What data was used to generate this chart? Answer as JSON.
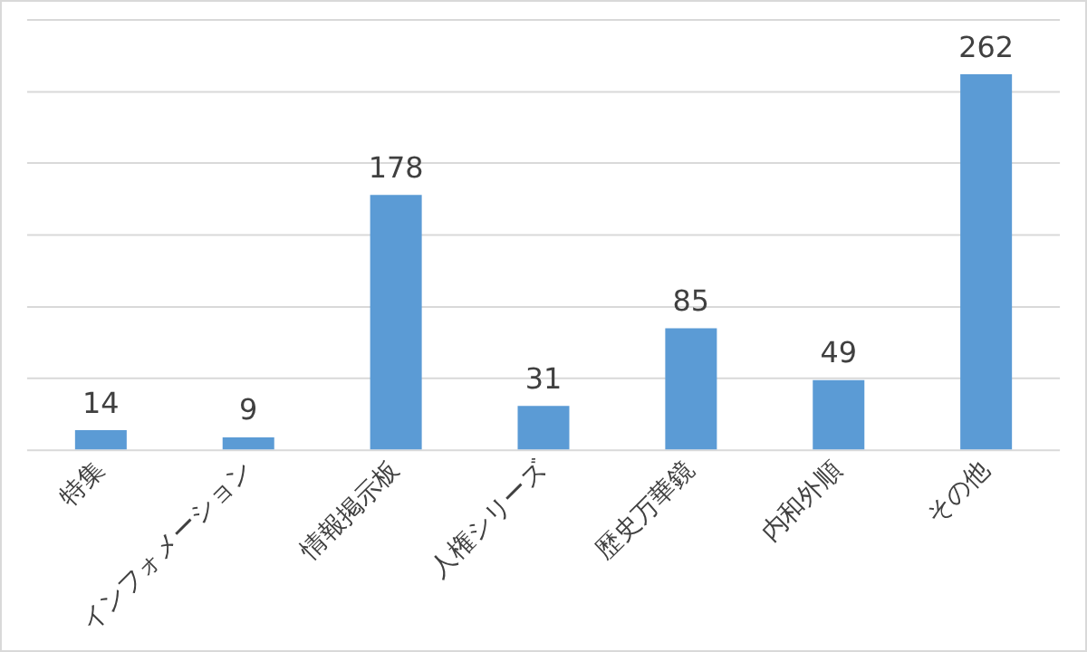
{
  "chart_data": {
    "type": "bar",
    "categories": [
      "特集",
      "インフォメーション",
      "情報掲示板",
      "人権シリーズ",
      "歴史万華鏡",
      "内和外順",
      "その他"
    ],
    "values": [
      14,
      9,
      178,
      31,
      85,
      49,
      262
    ],
    "color": "#5b9bd5",
    "ylim": [
      0,
      300
    ],
    "yticks": [
      {
        "value": 0,
        "label": null
      },
      {
        "value": 50,
        "label": null
      },
      {
        "value": 100,
        "label": null
      },
      {
        "value": 150,
        "label": null
      },
      {
        "value": 200,
        "label": null
      },
      {
        "value": 250,
        "label": null
      },
      {
        "value": 300,
        "label": null
      }
    ],
    "grid": "y",
    "tick_labels": "x",
    "data_labels": true,
    "legend": false
  }
}
